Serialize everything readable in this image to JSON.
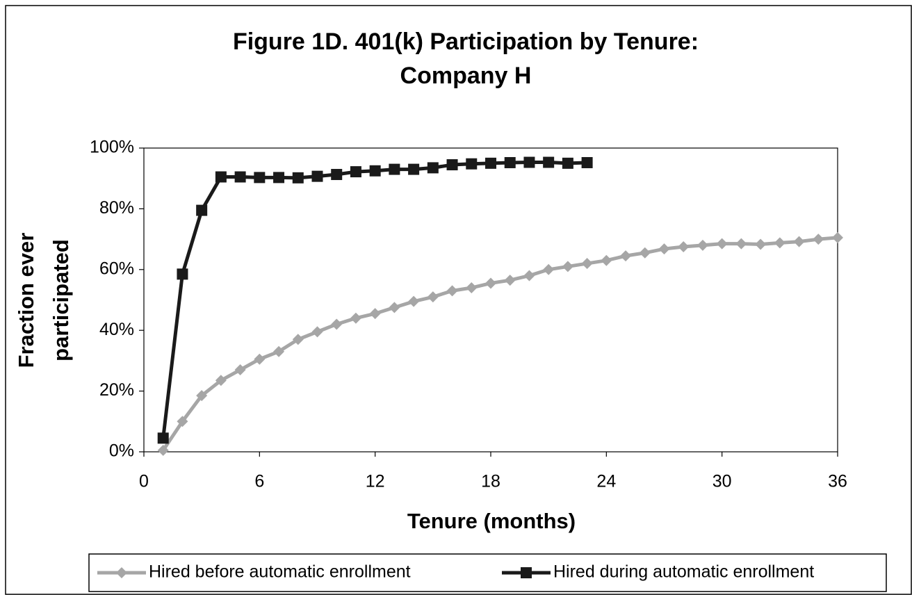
{
  "chart_data": {
    "type": "line",
    "title": [
      "Figure 1D. 401(k) Participation by Tenure:",
      "Company H"
    ],
    "x_label": "Tenure (months)",
    "y_label": [
      "Fraction ever",
      "participated"
    ],
    "xlim": [
      0,
      36
    ],
    "xticks": [
      0,
      6,
      12,
      18,
      24,
      30,
      36
    ],
    "ylim": [
      0,
      100
    ],
    "yticks": [
      {
        "value": 0,
        "label": "0%"
      },
      {
        "value": 20,
        "label": "20%"
      },
      {
        "value": 40,
        "label": "40%"
      },
      {
        "value": 60,
        "label": "60%"
      },
      {
        "value": 80,
        "label": "80%"
      },
      {
        "value": 100,
        "label": "100%"
      }
    ],
    "legend": "bottom",
    "series": [
      {
        "name": "Hired before automatic enrollment",
        "color": "#a6a6a6",
        "marker": "diamond",
        "x": [
          1,
          2,
          3,
          4,
          5,
          6,
          7,
          8,
          9,
          10,
          11,
          12,
          13,
          14,
          15,
          16,
          17,
          18,
          19,
          20,
          21,
          22,
          23,
          24,
          25,
          26,
          27,
          28,
          29,
          30,
          31,
          32,
          33,
          34,
          35,
          36
        ],
        "values": [
          0.5,
          10,
          18.5,
          23.5,
          27,
          30.5,
          33,
          37,
          39.5,
          42,
          44,
          45.5,
          47.5,
          49.5,
          51,
          53,
          54,
          55.5,
          56.5,
          58,
          60,
          61,
          62,
          63,
          64.5,
          65.5,
          66.8,
          67.5,
          68,
          68.5,
          68.5,
          68.3,
          68.8,
          69.2,
          70,
          70.5
        ]
      },
      {
        "name": "Hired during automatic enrollment",
        "color": "#1a1a1a",
        "marker": "square",
        "x": [
          1,
          2,
          3,
          4,
          5,
          6,
          7,
          8,
          9,
          10,
          11,
          12,
          13,
          14,
          15,
          16,
          17,
          18,
          19,
          20,
          21,
          22,
          23
        ],
        "values": [
          4.5,
          58.5,
          79.5,
          90.5,
          90.5,
          90.3,
          90.3,
          90.2,
          90.7,
          91.3,
          92.2,
          92.5,
          93,
          93,
          93.5,
          94.5,
          94.8,
          95,
          95.2,
          95.3,
          95.3,
          95,
          95.2
        ]
      }
    ]
  }
}
